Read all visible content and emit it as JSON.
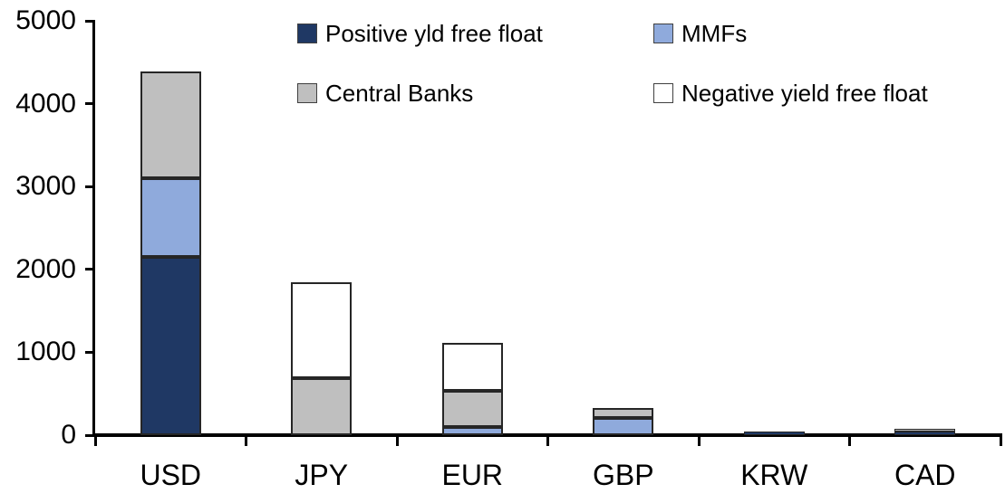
{
  "chart_data": {
    "type": "bar",
    "stacked": true,
    "title": "",
    "xlabel": "",
    "ylabel": "",
    "categories": [
      "USD",
      "JPY",
      "EUR",
      "GBP",
      "KRW",
      "CAD"
    ],
    "series": [
      {
        "name": "Positive yld free float",
        "color": "#1F3864",
        "values": [
          2150,
          0,
          0,
          0,
          45,
          45
        ]
      },
      {
        "name": "MMFs",
        "color": "#8FAADC",
        "values": [
          950,
          0,
          100,
          210,
          0,
          0
        ]
      },
      {
        "name": "Central Banks",
        "color": "#BFBFBF",
        "values": [
          1290,
          690,
          440,
          120,
          0,
          30
        ]
      },
      {
        "name": "Negative yield free float",
        "color": "#FFFFFF",
        "values": [
          0,
          1150,
          570,
          0,
          0,
          0
        ]
      }
    ],
    "ylim": [
      0,
      5000
    ],
    "yticks": [
      0,
      1000,
      2000,
      3000,
      4000,
      5000
    ],
    "ytick_labels": [
      "0",
      "1000",
      "2000",
      "3000",
      "4000",
      "5000"
    ],
    "legend_position": "top",
    "grid": false,
    "axis_color": "#000000",
    "segment_border_color": "#262626"
  }
}
